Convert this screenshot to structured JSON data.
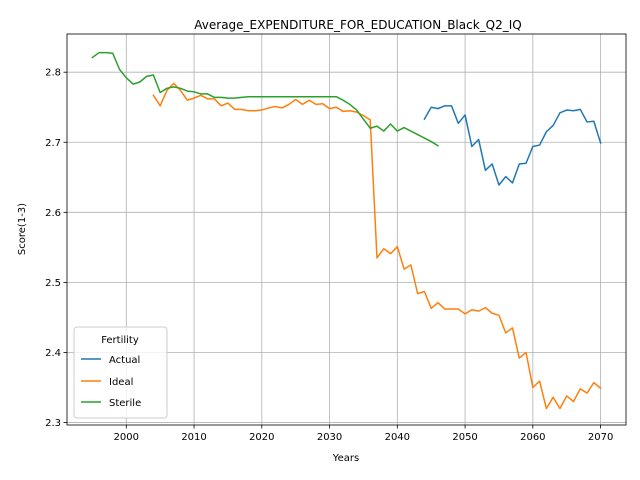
{
  "chart_data": {
    "type": "line",
    "title": "Average_EXPENDITURE_FOR_EDUCATION_Black_Q2_IQ",
    "xlabel": "Years",
    "ylabel": "Score(1-3)",
    "xlim": [
      1991.25,
      2073.75
    ],
    "ylim": [
      2.2965,
      2.8545
    ],
    "xticks": [
      2000,
      2010,
      2020,
      2030,
      2040,
      2050,
      2060,
      2070
    ],
    "xtick_labels": [
      "2000",
      "2010",
      "2020",
      "2030",
      "2040",
      "2050",
      "2060",
      "2070"
    ],
    "yticks": [
      2.3,
      2.4,
      2.5,
      2.6,
      2.7,
      2.8
    ],
    "ytick_labels": [
      "2.3",
      "2.4",
      "2.5",
      "2.6",
      "2.7",
      "2.8"
    ],
    "grid": true,
    "legend": {
      "title": "Fertility",
      "position": "lower-left"
    },
    "series": [
      {
        "name": "Actual",
        "color": "#1f77b4",
        "x": [
          2044,
          2045,
          2046,
          2047,
          2048,
          2049,
          2050,
          2051,
          2052,
          2053,
          2054,
          2055,
          2056,
          2057,
          2058,
          2059,
          2060,
          2061,
          2062,
          2063,
          2064,
          2065,
          2066,
          2067,
          2068,
          2069,
          2070
        ],
        "y": [
          2.733,
          2.75,
          2.748,
          2.752,
          2.752,
          2.727,
          2.739,
          2.694,
          2.704,
          2.66,
          2.669,
          2.639,
          2.651,
          2.642,
          2.669,
          2.67,
          2.694,
          2.696,
          2.715,
          2.724,
          2.742,
          2.746,
          2.745,
          2.747,
          2.729,
          2.73,
          2.699
        ]
      },
      {
        "name": "Ideal",
        "color": "#ff7f0e",
        "x": [
          2004,
          2005,
          2006,
          2007,
          2008,
          2009,
          2010,
          2011,
          2012,
          2013,
          2014,
          2015,
          2016,
          2017,
          2018,
          2019,
          2020,
          2021,
          2022,
          2023,
          2024,
          2025,
          2026,
          2027,
          2028,
          2029,
          2030,
          2031,
          2032,
          2033,
          2034,
          2035,
          2036,
          2037,
          2038,
          2039,
          2040,
          2041,
          2042,
          2043,
          2044,
          2045,
          2046,
          2047,
          2048,
          2049,
          2050,
          2051,
          2052,
          2053,
          2054,
          2055,
          2056,
          2057,
          2058,
          2059,
          2060,
          2061,
          2062,
          2063,
          2064,
          2065,
          2066,
          2067,
          2068,
          2069,
          2070
        ],
        "y": [
          2.767,
          2.752,
          2.774,
          2.784,
          2.774,
          2.76,
          2.763,
          2.767,
          2.762,
          2.762,
          2.752,
          2.756,
          2.747,
          2.747,
          2.745,
          2.745,
          2.746,
          2.749,
          2.751,
          2.749,
          2.754,
          2.761,
          2.754,
          2.76,
          2.754,
          2.755,
          2.748,
          2.75,
          2.744,
          2.745,
          2.743,
          2.738,
          2.732,
          2.535,
          2.548,
          2.541,
          2.551,
          2.519,
          2.525,
          2.484,
          2.487,
          2.463,
          2.471,
          2.462,
          2.462,
          2.462,
          2.455,
          2.461,
          2.459,
          2.464,
          2.456,
          2.453,
          2.428,
          2.435,
          2.392,
          2.4,
          2.35,
          2.359,
          2.32,
          2.336,
          2.32,
          2.338,
          2.33,
          2.348,
          2.342,
          2.357,
          2.349
        ]
      },
      {
        "name": "Sterile",
        "color": "#2ca02c",
        "x": [
          1995,
          1996,
          1997,
          1998,
          1999,
          2000,
          2001,
          2002,
          2003,
          2004,
          2005,
          2006,
          2007,
          2008,
          2009,
          2010,
          2011,
          2012,
          2013,
          2014,
          2015,
          2016,
          2017,
          2018,
          2019,
          2020,
          2021,
          2022,
          2023,
          2024,
          2025,
          2026,
          2027,
          2028,
          2029,
          2030,
          2031,
          2032,
          2033,
          2034,
          2035,
          2036,
          2037,
          2038,
          2039,
          2040,
          2041,
          2042,
          2043,
          2044,
          2045,
          2046
        ],
        "y": [
          2.821,
          2.828,
          2.828,
          2.827,
          2.804,
          2.792,
          2.783,
          2.786,
          2.794,
          2.796,
          2.771,
          2.777,
          2.779,
          2.777,
          2.773,
          2.772,
          2.769,
          2.769,
          2.764,
          2.764,
          2.763,
          2.763,
          2.764,
          2.765,
          2.765,
          2.765,
          2.765,
          2.765,
          2.765,
          2.765,
          2.765,
          2.765,
          2.765,
          2.765,
          2.765,
          2.765,
          2.765,
          2.76,
          2.754,
          2.746,
          2.733,
          2.72,
          2.723,
          2.716,
          2.726,
          2.716,
          2.721,
          2.716,
          2.711,
          2.706,
          2.701,
          2.695
        ]
      }
    ]
  }
}
